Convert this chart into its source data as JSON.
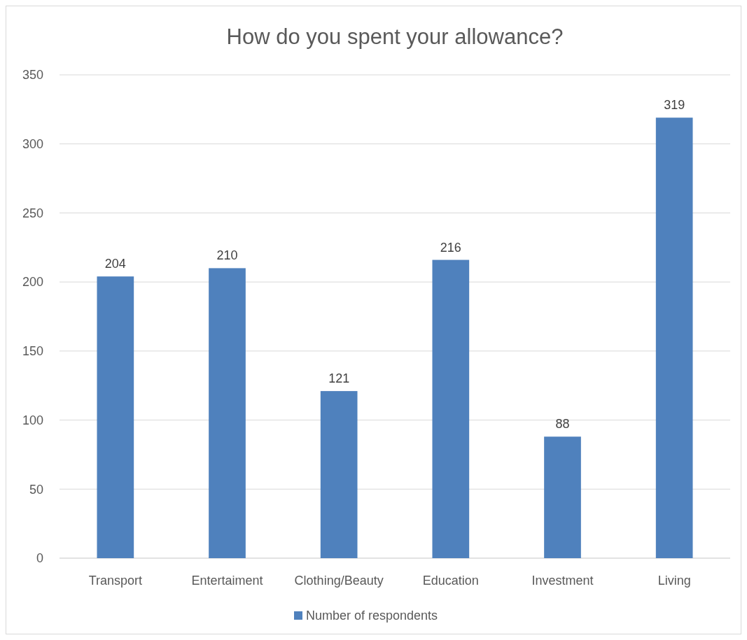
{
  "chart_data": {
    "type": "bar",
    "title": "How do you spent your allowance?",
    "categories": [
      "Transport",
      "Entertaiment",
      "Clothing/Beauty",
      "Education",
      "Investment",
      "Living"
    ],
    "series": [
      {
        "name": "Number of respondents",
        "color": "#4f81bd",
        "values": [
          204,
          210,
          121,
          216,
          88,
          319
        ]
      }
    ],
    "ylim": [
      0,
      350
    ],
    "yticks": [
      0,
      50,
      100,
      150,
      200,
      250,
      300,
      350
    ],
    "grid": "y",
    "legend": "bottom",
    "data_labels": true
  }
}
